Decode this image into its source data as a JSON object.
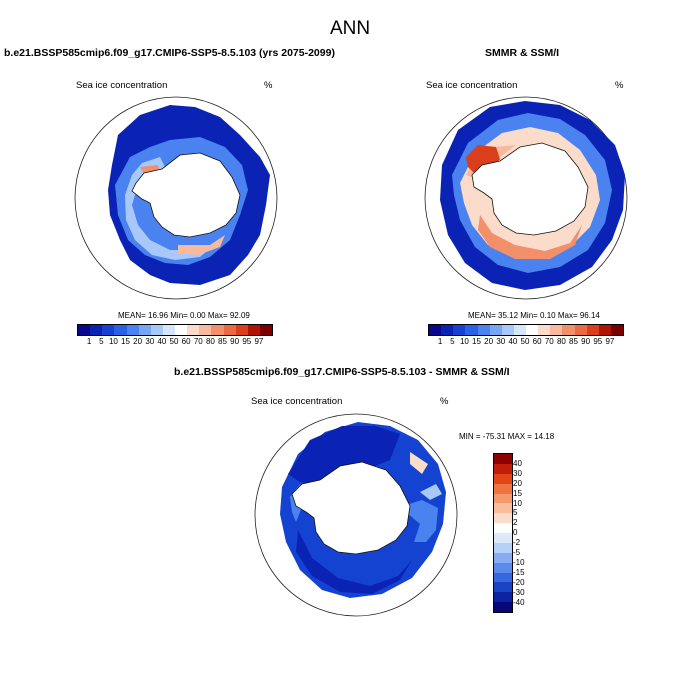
{
  "figure_title": "ANN",
  "panels": [
    {
      "title": "b.e21.BSSP585cmip6.f09_g17.CMIP6-SSP5-8.5.103 (yrs 2075-2099)",
      "left_label": "Sea ice concentration",
      "right_label": "%",
      "stats": "MEAN= 16.96 Min= 0.00 Max= 92.09"
    },
    {
      "title": "SMMR & SSM/I",
      "left_label": "Sea ice concentration",
      "right_label": "%",
      "stats": "MEAN= 35.12 Min= 0.10 Max= 96.14"
    },
    {
      "title": "b.e21.BSSP585cmip6.f09_g17.CMIP6-SSP5-8.5.103 - SMMR & SSM/I",
      "left_label": "Sea ice concentration",
      "right_label": "%",
      "stats": "MIN = -75.31 MAX = 14.18"
    }
  ],
  "colorbar_abs": {
    "labels": [
      "1",
      "5",
      "10",
      "15",
      "20",
      "30",
      "40",
      "50",
      "60",
      "70",
      "80",
      "85",
      "90",
      "95",
      "97"
    ],
    "colors": [
      "#08088c",
      "#0a23b4",
      "#1443d2",
      "#2a62e6",
      "#4a82f0",
      "#76a6f4",
      "#a8c8f8",
      "#d6e6fb",
      "#ffffff",
      "#fbdccb",
      "#f8b99c",
      "#f2906c",
      "#ea6a42",
      "#da3e1a",
      "#b01404",
      "#7a0000"
    ]
  },
  "colorbar_diff": {
    "labels": [
      "40",
      "30",
      "20",
      "15",
      "10",
      "5",
      "2",
      "0",
      "-2",
      "-5",
      "-10",
      "-15",
      "-20",
      "-30",
      "-40"
    ],
    "colors": [
      "#8a0000",
      "#c01e08",
      "#e24618",
      "#ef7440",
      "#f59a6e",
      "#f9bd9c",
      "#fbdccb",
      "#ffffff",
      "#dbe9fb",
      "#b4cff8",
      "#86adf2",
      "#5a8aea",
      "#3468dc",
      "#1a44c4",
      "#0c22a0",
      "#06087a"
    ]
  }
}
